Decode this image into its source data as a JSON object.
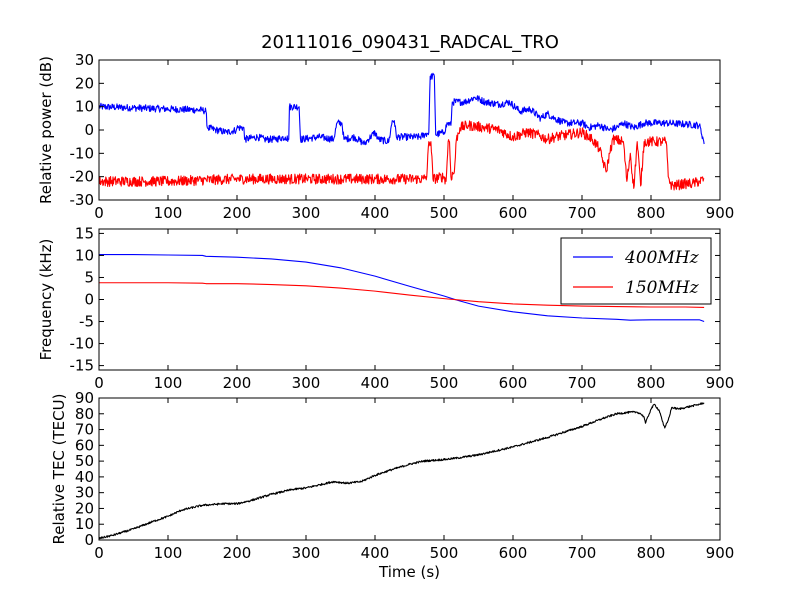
{
  "figure": {
    "title": "20111016_090431_RADCAL_TRO"
  },
  "chart_data": [
    {
      "type": "line",
      "xlabel": "",
      "ylabel": "Relative power (dB)",
      "xlim": [
        0,
        900
      ],
      "ylim": [
        -30,
        30
      ],
      "xticks": [
        0,
        100,
        200,
        300,
        400,
        500,
        600,
        700,
        800,
        900
      ],
      "yticks": [
        -30,
        -20,
        -10,
        0,
        10,
        20,
        30
      ],
      "grid": false,
      "series": [
        {
          "color": "#0000ff",
          "noise": 1.5,
          "points": [
            [
              0,
              10
            ],
            [
              50,
              9.5
            ],
            [
              100,
              9
            ],
            [
              150,
              8.5
            ],
            [
              155,
              8
            ],
            [
              157,
              1
            ],
            [
              170,
              0
            ],
            [
              185,
              -1
            ],
            [
              199,
              0
            ],
            [
              200,
              1
            ],
            [
              210,
              1
            ],
            [
              211,
              -4
            ],
            [
              230,
              -3
            ],
            [
              240,
              -4
            ],
            [
              255,
              -4
            ],
            [
              270,
              -3
            ],
            [
              275,
              -4
            ],
            [
              276,
              10
            ],
            [
              290,
              10
            ],
            [
              292,
              -4
            ],
            [
              320,
              -3
            ],
            [
              340,
              -4
            ],
            [
              345,
              3
            ],
            [
              352,
              3
            ],
            [
              355,
              -4
            ],
            [
              370,
              -3
            ],
            [
              385,
              -6
            ],
            [
              390,
              -4
            ],
            [
              400,
              -1
            ],
            [
              405,
              -4
            ],
            [
              420,
              -5
            ],
            [
              425,
              4
            ],
            [
              428,
              4
            ],
            [
              431,
              -3
            ],
            [
              445,
              -3
            ],
            [
              465,
              -3
            ],
            [
              478,
              -1
            ],
            [
              480,
              23
            ],
            [
              486,
              23
            ],
            [
              488,
              -2
            ],
            [
              500,
              -1
            ],
            [
              505,
              3
            ],
            [
              510,
              2
            ],
            [
              512,
              12
            ],
            [
              530,
              12
            ],
            [
              545,
              14
            ],
            [
              560,
              12
            ],
            [
              580,
              11
            ],
            [
              595,
              12
            ],
            [
              610,
              8
            ],
            [
              625,
              9
            ],
            [
              640,
              5
            ],
            [
              650,
              7
            ],
            [
              660,
              5
            ],
            [
              675,
              3
            ],
            [
              690,
              3
            ],
            [
              700,
              3
            ],
            [
              710,
              1
            ],
            [
              725,
              2
            ],
            [
              740,
              0
            ],
            [
              750,
              1
            ],
            [
              760,
              3
            ],
            [
              775,
              1
            ],
            [
              790,
              3
            ],
            [
              820,
              3
            ],
            [
              850,
              2.5
            ],
            [
              870,
              2
            ],
            [
              875,
              -3
            ],
            [
              877,
              -6
            ]
          ]
        },
        {
          "color": "#ff0000",
          "noise": 2.2,
          "points": [
            [
              0,
              -22
            ],
            [
              100,
              -22
            ],
            [
              200,
              -21
            ],
            [
              300,
              -21
            ],
            [
              400,
              -21
            ],
            [
              470,
              -21
            ],
            [
              475,
              -20
            ],
            [
              478,
              -5
            ],
            [
              481,
              -5
            ],
            [
              484,
              -21
            ],
            [
              500,
              -20
            ],
            [
              503,
              -22
            ],
            [
              506,
              -5
            ],
            [
              508,
              -5
            ],
            [
              510,
              -20
            ],
            [
              515,
              -18
            ],
            [
              518,
              -4
            ],
            [
              523,
              1
            ],
            [
              535,
              2
            ],
            [
              560,
              1
            ],
            [
              580,
              0
            ],
            [
              600,
              -3
            ],
            [
              620,
              -1
            ],
            [
              635,
              -2
            ],
            [
              650,
              -4
            ],
            [
              660,
              -3
            ],
            [
              680,
              -2
            ],
            [
              700,
              -1
            ],
            [
              715,
              -4
            ],
            [
              725,
              -8
            ],
            [
              735,
              -18
            ],
            [
              740,
              -10
            ],
            [
              745,
              -4
            ],
            [
              760,
              -5
            ],
            [
              765,
              -22
            ],
            [
              770,
              -10
            ],
            [
              775,
              -25
            ],
            [
              780,
              -5
            ],
            [
              785,
              -24
            ],
            [
              790,
              -5
            ],
            [
              800,
              -5
            ],
            [
              815,
              -5
            ],
            [
              822,
              -5
            ],
            [
              825,
              -20
            ],
            [
              830,
              -24
            ],
            [
              850,
              -23
            ],
            [
              860,
              -23
            ],
            [
              870,
              -22
            ],
            [
              877,
              -21
            ]
          ]
        }
      ]
    },
    {
      "type": "line",
      "xlabel": "",
      "ylabel": "Frequency (kHz)",
      "xlim": [
        0,
        900
      ],
      "ylim": [
        -16,
        16
      ],
      "xticks": [
        0,
        100,
        200,
        300,
        400,
        500,
        600,
        700,
        800,
        900
      ],
      "yticks": [
        -15,
        -10,
        -5,
        0,
        5,
        10,
        15
      ],
      "grid": false,
      "legend": {
        "placement": "top-right",
        "entries": [
          "400MHz",
          "150MHz"
        ]
      },
      "series": [
        {
          "name": "400MHz",
          "color": "#0000ff",
          "noise": 0,
          "points": [
            [
              0,
              10.2
            ],
            [
              50,
              10.2
            ],
            [
              100,
              10.1
            ],
            [
              150,
              10.0
            ],
            [
              155,
              9.8
            ],
            [
              200,
              9.6
            ],
            [
              250,
              9.2
            ],
            [
              300,
              8.5
            ],
            [
              350,
              7.2
            ],
            [
              400,
              5.3
            ],
            [
              450,
              3.0
            ],
            [
              500,
              0.8
            ],
            [
              520,
              -0.2
            ],
            [
              550,
              -1.5
            ],
            [
              600,
              -2.8
            ],
            [
              650,
              -3.7
            ],
            [
              700,
              -4.2
            ],
            [
              750,
              -4.5
            ],
            [
              770,
              -4.7
            ],
            [
              800,
              -4.6
            ],
            [
              850,
              -4.6
            ],
            [
              870,
              -4.6
            ],
            [
              877,
              -5.0
            ]
          ]
        },
        {
          "name": "150MHz",
          "color": "#ff0000",
          "noise": 0,
          "points": [
            [
              0,
              3.8
            ],
            [
              100,
              3.8
            ],
            [
              150,
              3.7
            ],
            [
              155,
              3.6
            ],
            [
              200,
              3.6
            ],
            [
              250,
              3.4
            ],
            [
              300,
              3.1
            ],
            [
              350,
              2.6
            ],
            [
              400,
              1.9
            ],
            [
              450,
              1.0
            ],
            [
              500,
              0.2
            ],
            [
              550,
              -0.5
            ],
            [
              600,
              -1.0
            ],
            [
              650,
              -1.3
            ],
            [
              700,
              -1.5
            ],
            [
              750,
              -1.6
            ],
            [
              800,
              -1.7
            ],
            [
              850,
              -1.7
            ],
            [
              877,
              -1.8
            ]
          ]
        }
      ]
    },
    {
      "type": "line",
      "xlabel": "Time (s)",
      "ylabel": "Relative TEC (TECU)",
      "xlim": [
        0,
        900
      ],
      "ylim": [
        0,
        90
      ],
      "xticks": [
        0,
        100,
        200,
        300,
        400,
        500,
        600,
        700,
        800,
        900
      ],
      "yticks": [
        0,
        10,
        20,
        30,
        40,
        50,
        60,
        70,
        80,
        90
      ],
      "grid": false,
      "series": [
        {
          "color": "#000000",
          "noise": 0.6,
          "points": [
            [
              0,
              1
            ],
            [
              20,
              3
            ],
            [
              50,
              7
            ],
            [
              80,
              12
            ],
            [
              100,
              15
            ],
            [
              120,
              19
            ],
            [
              150,
              22
            ],
            [
              180,
              23
            ],
            [
              200,
              23
            ],
            [
              220,
              25
            ],
            [
              250,
              29
            ],
            [
              280,
              32
            ],
            [
              300,
              33
            ],
            [
              320,
              35
            ],
            [
              340,
              37
            ],
            [
              360,
              36
            ],
            [
              380,
              37
            ],
            [
              400,
              41
            ],
            [
              420,
              44
            ],
            [
              450,
              48
            ],
            [
              470,
              50
            ],
            [
              500,
              51
            ],
            [
              520,
              52
            ],
            [
              550,
              54
            ],
            [
              600,
              59
            ],
            [
              650,
              65
            ],
            [
              700,
              72
            ],
            [
              730,
              77
            ],
            [
              750,
              80
            ],
            [
              770,
              81
            ],
            [
              780,
              81
            ],
            [
              785,
              80
            ],
            [
              790,
              78
            ],
            [
              792,
              74
            ],
            [
              800,
              83
            ],
            [
              805,
              86
            ],
            [
              812,
              82
            ],
            [
              815,
              78
            ],
            [
              818,
              73
            ],
            [
              820,
              71
            ],
            [
              825,
              76
            ],
            [
              830,
              84
            ],
            [
              840,
              83
            ],
            [
              850,
              84
            ],
            [
              860,
              85
            ],
            [
              870,
              86
            ],
            [
              877,
              87
            ]
          ]
        }
      ]
    }
  ]
}
